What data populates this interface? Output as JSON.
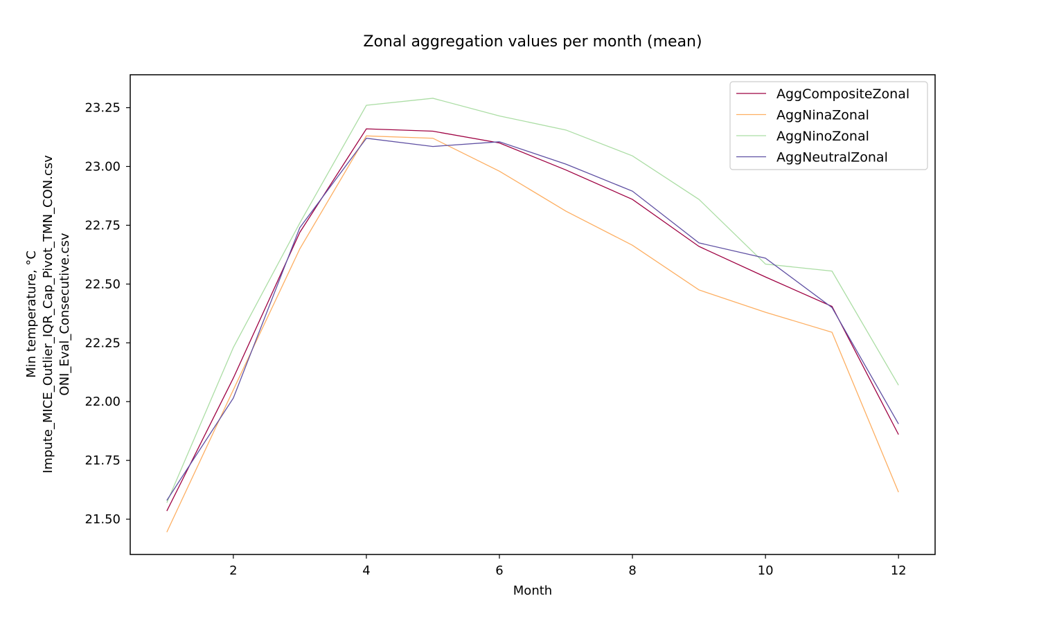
{
  "chart_data": {
    "type": "line",
    "title": "Zonal aggregation values per month (mean)",
    "xlabel": "Month",
    "ylabel_lines": [
      "Min temperature, °C",
      "Impute_MICE_Outlier_IQR_Cap_Pivot_TMN_CON.csv",
      "ONI_Eval_Consecutive.csv"
    ],
    "x": [
      1,
      2,
      3,
      4,
      5,
      6,
      7,
      8,
      9,
      10,
      11,
      12
    ],
    "xlim": [
      0.45,
      12.55
    ],
    "ylim": [
      21.35,
      23.39
    ],
    "xticks": [
      2,
      4,
      6,
      8,
      10,
      12
    ],
    "yticks": [
      21.5,
      21.75,
      22.0,
      22.25,
      22.5,
      22.75,
      23.0,
      23.25
    ],
    "ytick_labels": [
      "21.50",
      "21.75",
      "22.00",
      "22.25",
      "22.50",
      "22.75",
      "23.00",
      "23.25"
    ],
    "grid": false,
    "legend_position": "top-right",
    "series": [
      {
        "name": "AggCompositeZonal",
        "color": "#9e0142",
        "values": [
          21.535,
          22.1,
          22.72,
          23.16,
          23.15,
          23.1,
          22.985,
          22.86,
          22.66,
          22.53,
          22.405,
          21.86
        ]
      },
      {
        "name": "AggNinaZonal",
        "color": "#fdae61",
        "values": [
          21.445,
          22.05,
          22.65,
          23.13,
          23.12,
          22.98,
          22.81,
          22.665,
          22.475,
          22.38,
          22.295,
          21.615
        ]
      },
      {
        "name": "AggNinoZonal",
        "color": "#abdda4",
        "values": [
          21.57,
          22.23,
          22.76,
          23.26,
          23.29,
          23.215,
          23.155,
          23.045,
          22.86,
          22.585,
          22.555,
          22.07
        ]
      },
      {
        "name": "AggNeutralZonal",
        "color": "#5e4fa2",
        "values": [
          21.58,
          22.015,
          22.74,
          23.12,
          23.085,
          23.105,
          23.01,
          22.895,
          22.675,
          22.61,
          22.4,
          21.905
        ]
      }
    ]
  }
}
